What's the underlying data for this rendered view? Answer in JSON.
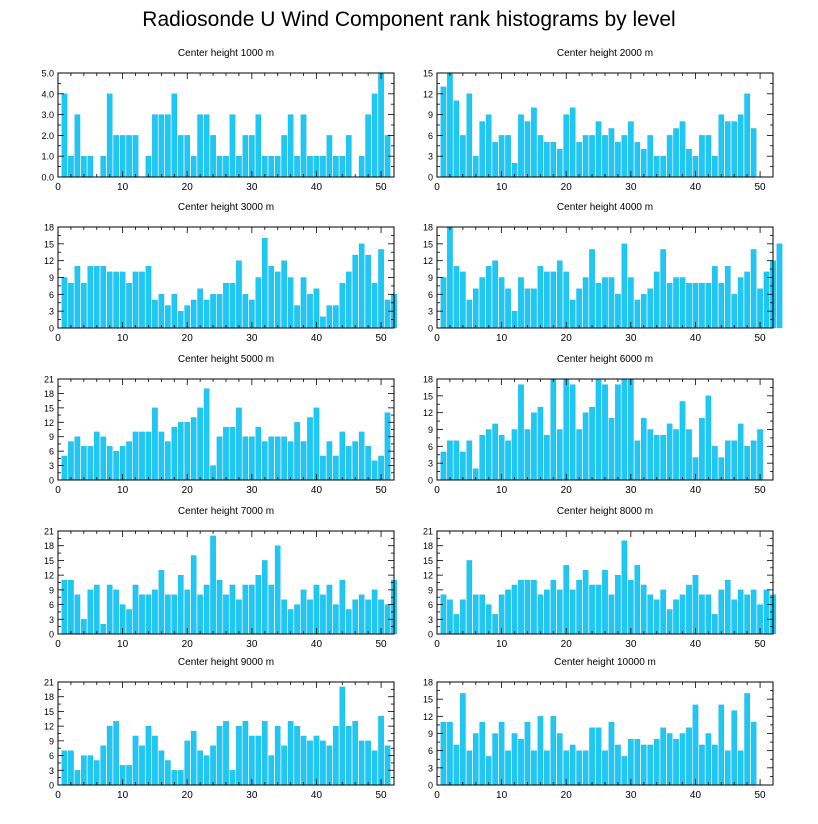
{
  "title": "Radiosonde U Wind Component rank histograms by level",
  "colors": {
    "bar": "#1ec8f5",
    "bar_edge": "#0aa6d6",
    "axis": "#000000"
  },
  "chart_data": [
    {
      "type": "bar",
      "title": "Center height 1000 m",
      "xlim": [
        0,
        52
      ],
      "ylim": [
        0,
        5
      ],
      "xticks": [
        0,
        10,
        20,
        30,
        40,
        50
      ],
      "yticks": [
        0,
        1,
        2,
        3,
        4,
        5
      ],
      "ytick_labels": [
        "0.0",
        "1.0",
        "2.0",
        "3.0",
        "4.0",
        "5.0"
      ],
      "values": [
        4,
        1,
        3,
        1,
        1,
        0,
        1,
        4,
        2,
        2,
        2,
        2,
        0,
        1,
        3,
        3,
        3,
        4,
        2,
        2,
        1,
        3,
        3,
        2,
        1,
        1,
        3,
        1,
        2,
        2,
        3,
        1,
        1,
        1,
        2,
        3,
        1,
        3,
        1,
        1,
        1,
        2,
        1,
        1,
        2,
        0,
        1,
        3,
        4,
        5,
        2
      ]
    },
    {
      "type": "bar",
      "title": "Center height 2000 m",
      "xlim": [
        0,
        52
      ],
      "ylim": [
        0,
        15
      ],
      "xticks": [
        0,
        10,
        20,
        30,
        40,
        50
      ],
      "yticks": [
        0,
        3,
        6,
        9,
        12,
        15
      ],
      "ytick_labels": [
        "0",
        "3",
        "6",
        "9",
        "12",
        "15"
      ],
      "values": [
        13,
        15,
        11,
        6,
        12,
        3,
        8,
        9,
        5,
        6,
        6,
        2,
        9,
        8,
        10,
        6,
        5,
        5,
        4,
        9,
        10,
        5,
        6,
        6,
        8,
        6,
        7,
        5,
        6,
        8,
        5,
        4,
        6,
        3,
        3,
        6,
        7,
        8,
        4,
        3,
        6,
        6,
        3,
        9,
        8,
        8,
        9,
        12,
        7,
        0,
        0
      ]
    },
    {
      "type": "bar",
      "title": "Center height 3000 m",
      "xlim": [
        0,
        52
      ],
      "ylim": [
        0,
        18
      ],
      "xticks": [
        0,
        10,
        20,
        30,
        40,
        50
      ],
      "yticks": [
        0,
        3,
        6,
        9,
        12,
        15,
        18
      ],
      "ytick_labels": [
        "0",
        "3",
        "6",
        "9",
        "12",
        "15",
        "18"
      ],
      "values": [
        9,
        8,
        11,
        8,
        11,
        11,
        11,
        10,
        10,
        10,
        8,
        10,
        10,
        11,
        5,
        6,
        4,
        6,
        3,
        4,
        5,
        7,
        5,
        6,
        6,
        8,
        8,
        12,
        6,
        5,
        9,
        16,
        11,
        10,
        12,
        9,
        4,
        9,
        6,
        7,
        2,
        4,
        4,
        8,
        10,
        13,
        15,
        13,
        8,
        14,
        5,
        6
      ]
    },
    {
      "type": "bar",
      "title": "Center height 4000 m",
      "xlim": [
        0,
        52
      ],
      "ylim": [
        0,
        18
      ],
      "xticks": [
        0,
        10,
        20,
        30,
        40,
        50
      ],
      "yticks": [
        0,
        3,
        6,
        9,
        12,
        15,
        18
      ],
      "ytick_labels": [
        "0",
        "3",
        "6",
        "9",
        "12",
        "15",
        "18"
      ],
      "values": [
        9,
        18,
        11,
        10,
        5,
        7,
        9,
        11,
        12,
        9,
        7,
        3,
        9,
        7,
        7,
        11,
        10,
        10,
        12,
        10,
        5,
        7,
        9,
        14,
        8,
        9,
        9,
        6,
        15,
        9,
        5,
        6,
        7,
        10,
        14,
        8,
        9,
        9,
        8,
        8,
        8,
        8,
        11,
        8,
        11,
        6,
        9,
        10,
        14,
        7,
        10,
        12,
        15
      ]
    },
    {
      "type": "bar",
      "title": "Center height 5000 m",
      "xlim": [
        0,
        52
      ],
      "ylim": [
        0,
        21
      ],
      "xticks": [
        0,
        10,
        20,
        30,
        40,
        50
      ],
      "yticks": [
        0,
        3,
        6,
        9,
        12,
        15,
        18,
        21
      ],
      "ytick_labels": [
        "0",
        "3",
        "6",
        "9",
        "12",
        "15",
        "18",
        "21"
      ],
      "values": [
        5,
        8,
        9,
        7,
        7,
        10,
        9,
        7,
        6,
        7,
        8,
        10,
        10,
        10,
        15,
        10,
        8,
        11,
        12,
        12,
        13,
        15,
        19,
        3,
        9,
        11,
        11,
        15,
        9,
        9,
        11,
        8,
        9,
        9,
        9,
        8,
        12,
        8,
        13,
        15,
        5,
        8,
        5,
        10,
        7,
        8,
        10,
        7,
        4,
        5,
        14
      ]
    },
    {
      "type": "bar",
      "title": "Center height 6000 m",
      "xlim": [
        0,
        52
      ],
      "ylim": [
        0,
        18
      ],
      "xticks": [
        0,
        10,
        20,
        30,
        40,
        50
      ],
      "yticks": [
        0,
        3,
        6,
        9,
        12,
        15,
        18
      ],
      "ytick_labels": [
        "0",
        "3",
        "6",
        "9",
        "12",
        "15",
        "18"
      ],
      "values": [
        5,
        7,
        7,
        5,
        7,
        2,
        8,
        9,
        10,
        8,
        7,
        9,
        17,
        9,
        12,
        13,
        8,
        18,
        9,
        18,
        17,
        9,
        12,
        13,
        18,
        17,
        11,
        17,
        18,
        18,
        7,
        11,
        9,
        8,
        8,
        10,
        9,
        14,
        9,
        4,
        11,
        15,
        6,
        4,
        7,
        7,
        10,
        6,
        7,
        9
      ]
    },
    {
      "type": "bar",
      "title": "Center height 7000 m",
      "xlim": [
        0,
        52
      ],
      "ylim": [
        0,
        21
      ],
      "xticks": [
        0,
        10,
        20,
        30,
        40,
        50
      ],
      "yticks": [
        0,
        3,
        6,
        9,
        12,
        15,
        18,
        21
      ],
      "ytick_labels": [
        "0",
        "3",
        "6",
        "9",
        "12",
        "15",
        "18",
        "21"
      ],
      "values": [
        11,
        11,
        8,
        3,
        9,
        10,
        2,
        10,
        9,
        6,
        5,
        10,
        8,
        8,
        9,
        13,
        8,
        8,
        12,
        9,
        16,
        8,
        10,
        20,
        11,
        8,
        10,
        7,
        10,
        10,
        12,
        15,
        10,
        18,
        7,
        5,
        6,
        9,
        7,
        10,
        8,
        10,
        6,
        11,
        5,
        7,
        8,
        7,
        9,
        7,
        6,
        11
      ]
    },
    {
      "type": "bar",
      "title": "Center height 8000 m",
      "xlim": [
        0,
        52
      ],
      "ylim": [
        0,
        21
      ],
      "xticks": [
        0,
        10,
        20,
        30,
        40,
        50
      ],
      "yticks": [
        0,
        3,
        6,
        9,
        12,
        15,
        18,
        21
      ],
      "ytick_labels": [
        "0",
        "3",
        "6",
        "9",
        "12",
        "15",
        "18",
        "21"
      ],
      "values": [
        8,
        7,
        4,
        7,
        15,
        8,
        8,
        6,
        4,
        8,
        9,
        10,
        11,
        11,
        11,
        8,
        9,
        11,
        9,
        14,
        9,
        11,
        13,
        10,
        10,
        13,
        8,
        12,
        19,
        11,
        14,
        10,
        8,
        7,
        9,
        5,
        7,
        8,
        10,
        12,
        8,
        8,
        4,
        9,
        11,
        7,
        9,
        8,
        9,
        6,
        9,
        8
      ]
    },
    {
      "type": "bar",
      "title": "Center height 9000 m",
      "xlim": [
        0,
        52
      ],
      "ylim": [
        0,
        21
      ],
      "xticks": [
        0,
        10,
        20,
        30,
        40,
        50
      ],
      "yticks": [
        0,
        3,
        6,
        9,
        12,
        15,
        18,
        21
      ],
      "ytick_labels": [
        "0",
        "3",
        "6",
        "9",
        "12",
        "15",
        "18",
        "21"
      ],
      "values": [
        7,
        7,
        3,
        6,
        6,
        5,
        8,
        12,
        13,
        4,
        4,
        10,
        8,
        12,
        10,
        7,
        5,
        3,
        3,
        9,
        11,
        7,
        6,
        8,
        12,
        13,
        3,
        12,
        13,
        10,
        10,
        13,
        6,
        12,
        8,
        13,
        12,
        10,
        9,
        10,
        9,
        8,
        12,
        20,
        12,
        13,
        9,
        9,
        7,
        14,
        8
      ]
    },
    {
      "type": "bar",
      "title": "Center height 10000 m",
      "xlim": [
        0,
        52
      ],
      "ylim": [
        0,
        18
      ],
      "xticks": [
        0,
        10,
        20,
        30,
        40,
        50
      ],
      "yticks": [
        0,
        3,
        6,
        9,
        12,
        15,
        18
      ],
      "ytick_labels": [
        "0",
        "3",
        "6",
        "9",
        "12",
        "15",
        "18"
      ],
      "values": [
        11,
        11,
        7,
        16,
        6,
        9,
        11,
        5,
        9,
        11,
        6,
        9,
        8,
        11,
        6,
        12,
        6,
        12,
        9,
        6,
        7,
        6,
        6,
        10,
        10,
        6,
        11,
        7,
        5,
        8,
        8,
        7,
        7,
        8,
        10,
        9,
        8,
        9,
        10,
        14,
        7,
        9,
        7,
        14,
        6,
        13,
        6,
        16,
        11
      ]
    }
  ]
}
